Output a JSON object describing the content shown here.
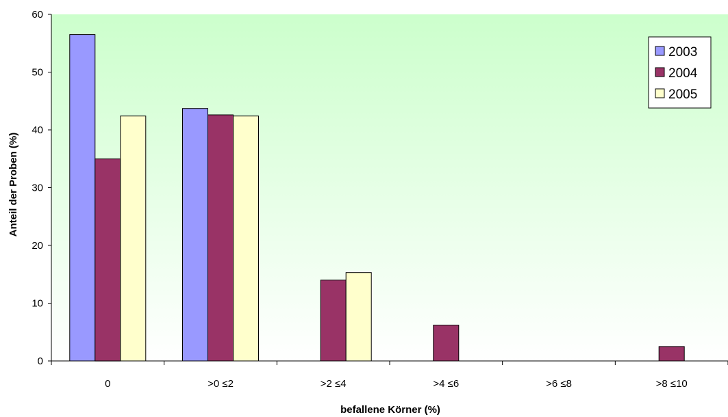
{
  "chart_data": {
    "type": "bar",
    "title": "",
    "xlabel": "befallene Körner (%)",
    "ylabel": "Anteil der Proben (%)",
    "categories": [
      "0",
      ">0 ≤2",
      ">2 ≤4",
      ">4 ≤6",
      ">6 ≤8",
      ">8 ≤10"
    ],
    "ylim": [
      0,
      60
    ],
    "yticks": [
      0,
      10,
      20,
      30,
      40,
      50,
      60
    ],
    "grid": false,
    "legend_position": "top-right",
    "series": [
      {
        "name": "2003",
        "color": "#9999ff",
        "values": [
          56.5,
          43.7,
          0,
          0,
          0,
          0
        ]
      },
      {
        "name": "2004",
        "color": "#993366",
        "values": [
          35,
          42.6,
          14,
          6.2,
          0,
          2.5
        ]
      },
      {
        "name": "2005",
        "color": "#ffffcc",
        "values": [
          42.4,
          42.4,
          15.3,
          0,
          0,
          0
        ]
      }
    ],
    "plot_background": {
      "top_color": "#ccffcc",
      "bottom_color": "#ffffff"
    }
  }
}
